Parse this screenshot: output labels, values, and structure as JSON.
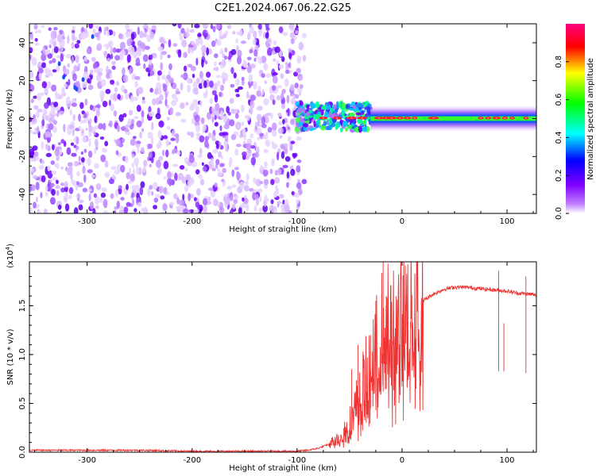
{
  "title": "C2E1.2024.067.06.22.G25",
  "chart_data": [
    {
      "type": "heatmap",
      "xlabel": "Height of straight line (km)",
      "ylabel": "Frequency (Hz)",
      "xlim": [
        -355,
        128
      ],
      "ylim": [
        -50,
        50
      ],
      "x_ticks": [
        -300,
        -200,
        -100,
        0,
        100
      ],
      "y_ticks": [
        -40,
        -20,
        0,
        20,
        40
      ],
      "x_tick_labels": [
        "-300",
        "-200",
        "-100",
        "0",
        "100"
      ],
      "y_tick_labels": [
        "-40",
        "-20",
        "0",
        "20",
        "40"
      ],
      "regions": [
        {
          "x_range": [
            -355,
            -95
          ],
          "y_range": [
            -50,
            50
          ],
          "amplitude": [
            0.0,
            0.3
          ],
          "note": "scattered noise"
        },
        {
          "x_range": [
            -100,
            -30
          ],
          "y_range": [
            -5,
            10
          ],
          "amplitude": [
            0.3,
            0.9
          ],
          "note": "signal onset"
        },
        {
          "x_range": [
            -30,
            128
          ],
          "y_range": [
            -3,
            3
          ],
          "amplitude": [
            0.5,
            1.0
          ],
          "note": "narrow carrier line"
        }
      ],
      "colorbar": {
        "label": "Normalized spectral amplitude",
        "range": [
          0.0,
          1.0
        ],
        "ticks": [
          0.0,
          0.2,
          0.4,
          0.6,
          0.8
        ],
        "tick_labels": [
          "0.0",
          "0.2",
          "0.4",
          "0.6",
          "0.8"
        ],
        "colors": [
          "#ffffff",
          "#8000ff",
          "#0000ff",
          "#00ffff",
          "#00ff00",
          "#ffff00",
          "#ff0000",
          "#ff0080"
        ]
      }
    },
    {
      "type": "line",
      "xlabel": "Height of straight line (km)",
      "ylabel": "SNR (10 * v/v)",
      "y_multiplier_label": "(x10",
      "y_multiplier_exp": "4",
      "xlim": [
        -355,
        128
      ],
      "ylim": [
        0,
        1.95
      ],
      "x_ticks": [
        -300,
        -200,
        -100,
        0,
        100
      ],
      "y_ticks": [
        0.0,
        0.5,
        1.0,
        1.5
      ],
      "x_tick_labels": [
        "-300",
        "-200",
        "-100",
        "0",
        "100"
      ],
      "y_tick_labels": [
        "0.0",
        "0.5",
        "1.0",
        "1.5"
      ],
      "color": "#ee3333",
      "series": [
        {
          "x": [
            -355,
            -300,
            -250,
            -200,
            -150,
            -110,
            -100,
            -90,
            -80,
            -70,
            -60,
            -50,
            -45,
            -40,
            -35,
            -30,
            -25,
            -20,
            -15,
            -10,
            -5,
            0,
            10,
            20,
            30,
            40,
            50,
            60,
            70,
            80,
            90,
            100,
            110,
            120,
            128
          ],
          "y": [
            0.02,
            0.02,
            0.02,
            0.01,
            0.01,
            0.01,
            0.01,
            0.02,
            0.04,
            0.08,
            0.15,
            0.3,
            0.45,
            0.6,
            0.75,
            0.9,
            1.05,
            1.2,
            1.3,
            1.25,
            1.3,
            1.35,
            1.45,
            1.55,
            1.62,
            1.67,
            1.69,
            1.69,
            1.68,
            1.67,
            1.66,
            1.65,
            1.63,
            1.62,
            1.61
          ],
          "spikes": [
            {
              "x": -48,
              "y": 0.85
            },
            {
              "x": -42,
              "y": 1.1
            },
            {
              "x": -36,
              "y": 0.95
            },
            {
              "x": -30,
              "y": 1.2
            },
            {
              "x": -25,
              "y": 1.55
            },
            {
              "x": -18,
              "y": 1.95
            },
            {
              "x": -15,
              "y": 1.6
            },
            {
              "x": -8,
              "y": 1.45
            },
            {
              "x": 92,
              "y": 1.86
            },
            {
              "x": 97,
              "y": 1.32
            },
            {
              "x": 118,
              "y": 1.8
            }
          ]
        }
      ]
    }
  ]
}
